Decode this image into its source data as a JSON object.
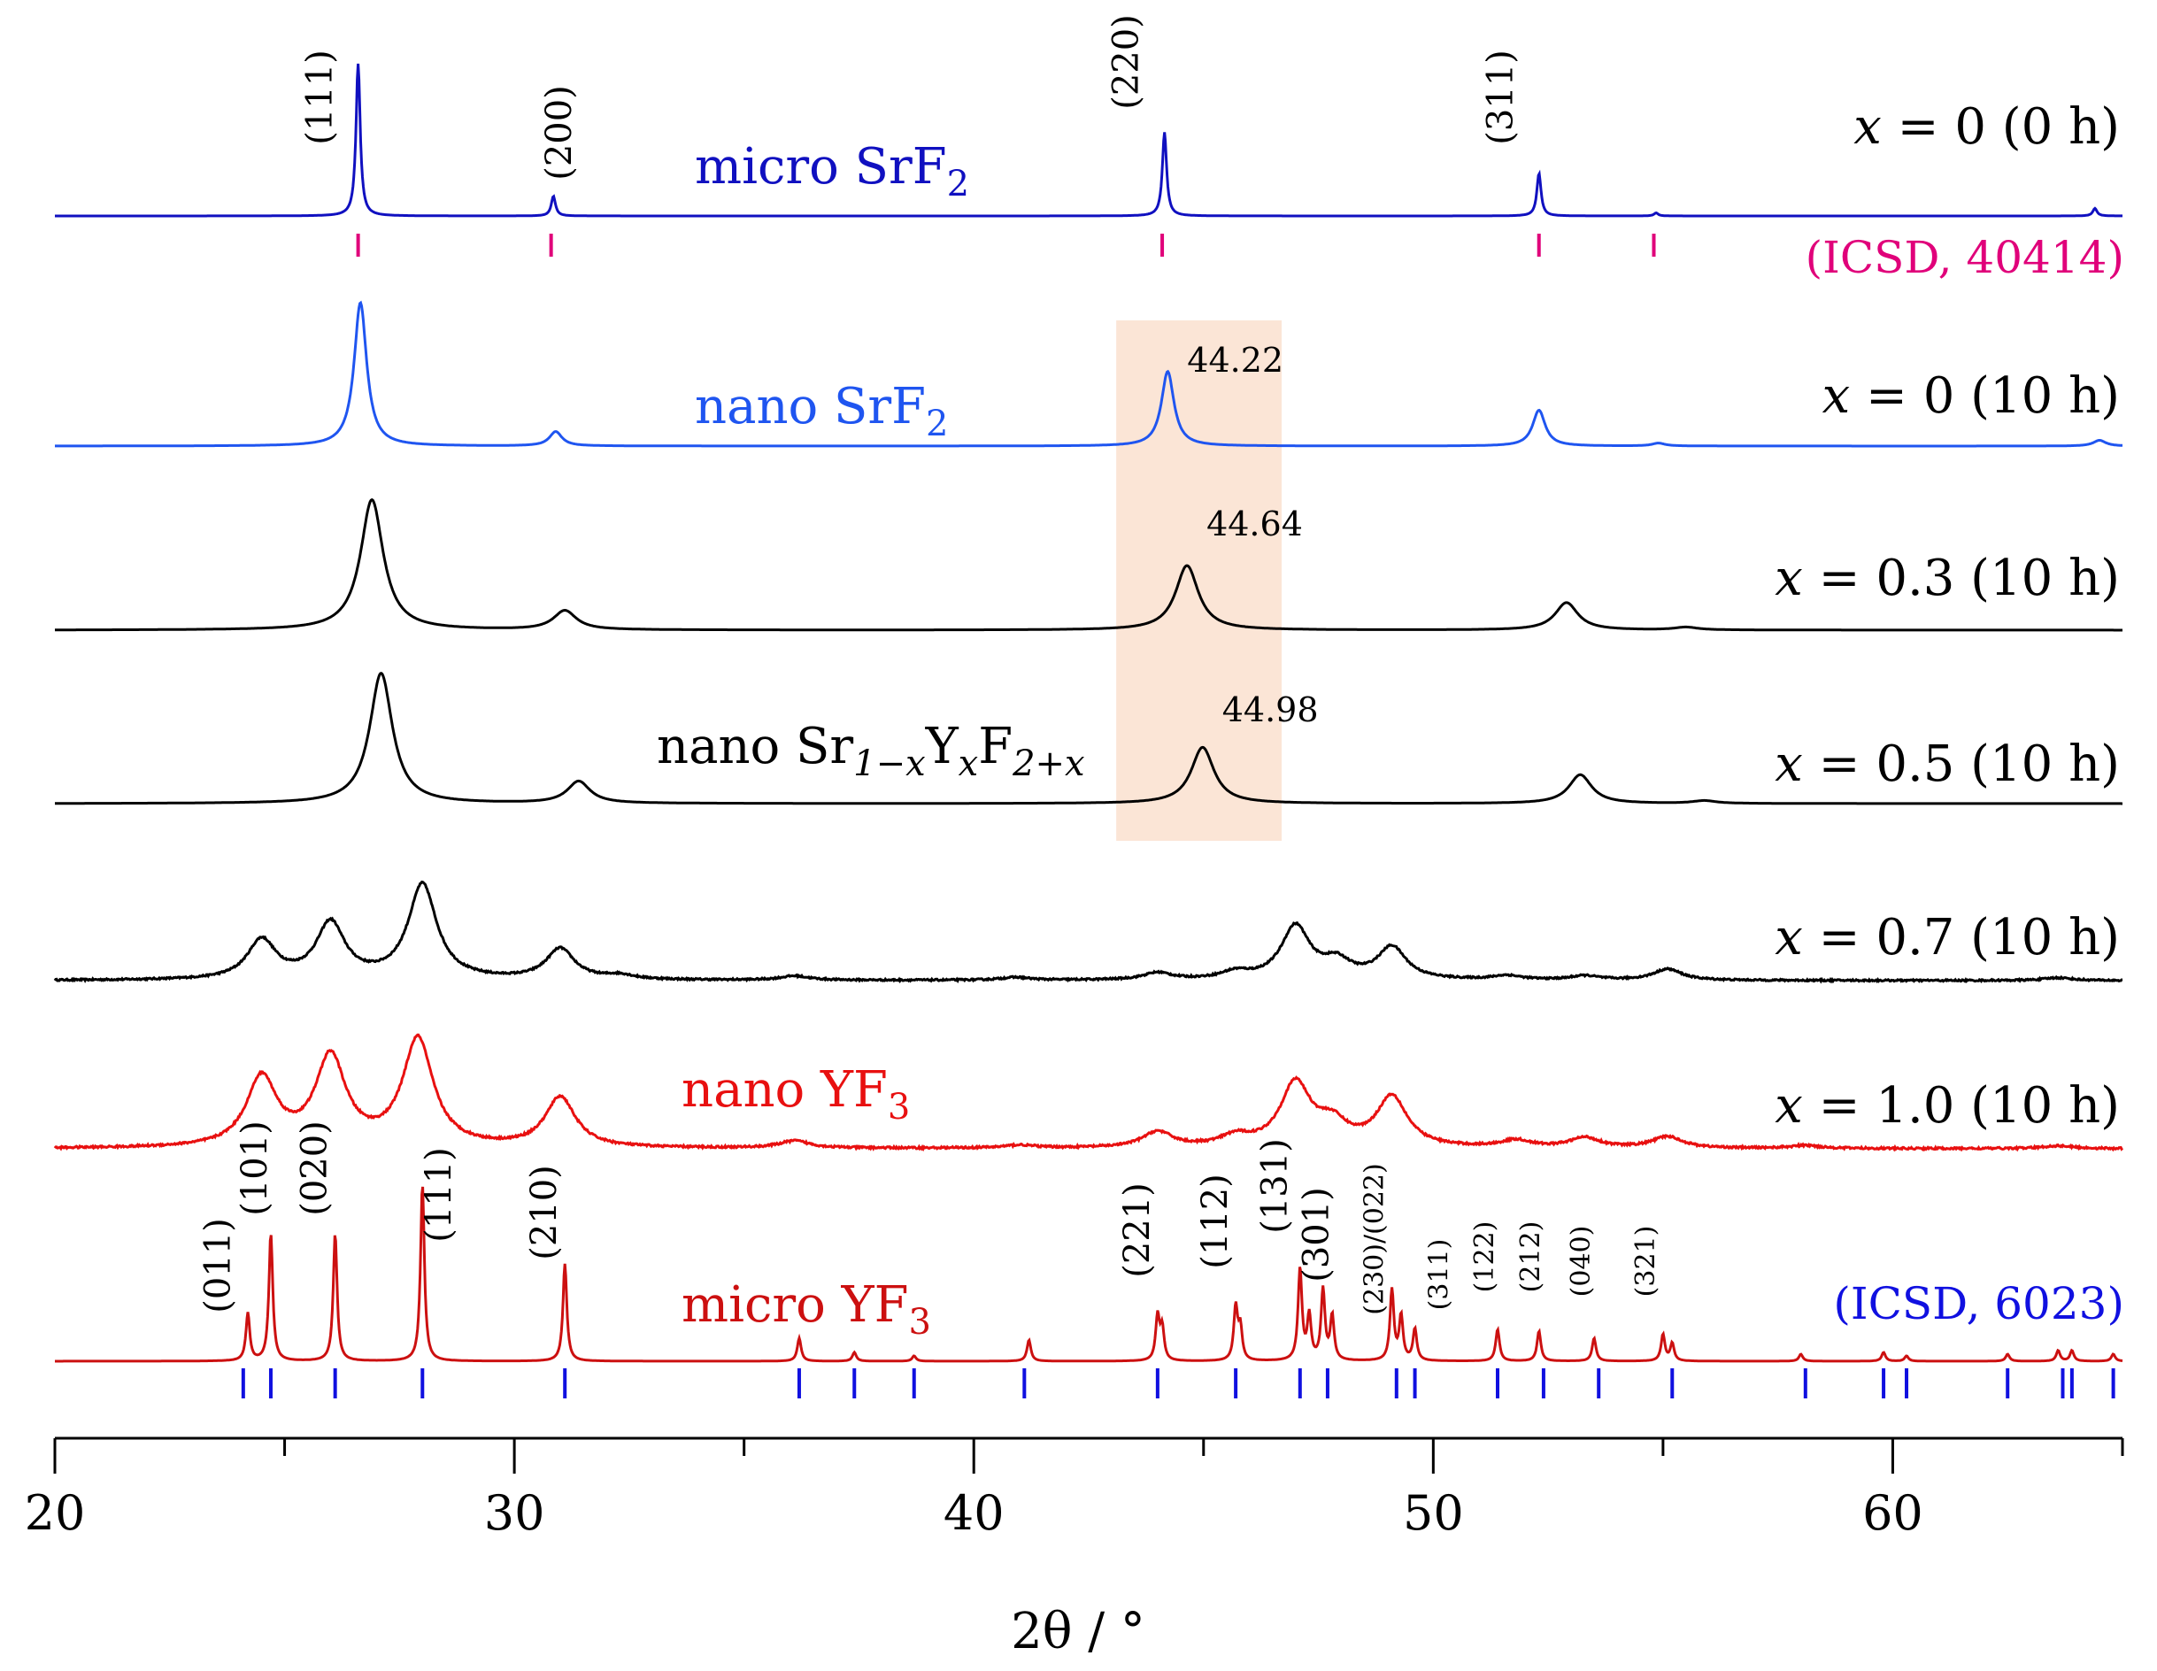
{
  "chart_data": {
    "type": "line",
    "title": "",
    "xlabel": "2θ / °",
    "ylabel": "",
    "xlim": [
      20,
      65
    ],
    "x_ticks": [
      20,
      30,
      40,
      50,
      60
    ],
    "x_tick_labels": [
      "20",
      "30",
      "40",
      "50",
      "60"
    ],
    "grid": false,
    "highlight_region": {
      "x_range": [
        43.1,
        46.7
      ],
      "color": "#fbe5d6"
    },
    "series": [
      {
        "name": "micro SrF2",
        "label_main": "micro SrF",
        "label_sub": "2",
        "condition": "x = 0 (0 h)",
        "color": "#1010c0",
        "fwhm": 0.11,
        "noise": 0.0,
        "peaks": [
          [
            26.6,
            1.0
          ],
          [
            30.85,
            0.13
          ],
          [
            44.15,
            0.55
          ],
          [
            52.3,
            0.28
          ],
          [
            54.85,
            0.02
          ],
          [
            64.4,
            0.05
          ]
        ],
        "hkl": [
          {
            "label": "(111)",
            "x": 26.6
          },
          {
            "label": "(200)",
            "x": 30.85
          },
          {
            "label": "(220)",
            "x": 44.15
          },
          {
            "label": "(311)",
            "x": 52.3
          }
        ]
      },
      {
        "name": "nano SrF2",
        "label_main": "nano SrF",
        "label_sub": "2",
        "condition": "x = 0 (10 h)",
        "color": "#1f55f0",
        "fwhm": 0.33,
        "noise": 0.0,
        "peaks": [
          [
            26.65,
            1.0
          ],
          [
            30.9,
            0.1
          ],
          [
            44.22,
            0.52
          ],
          [
            52.3,
            0.25
          ],
          [
            54.9,
            0.02
          ],
          [
            64.5,
            0.04
          ]
        ],
        "peak_label": {
          "text": "44.22",
          "x": 44.22
        }
      },
      {
        "name": "x = 0.3",
        "condition": "x = 0.3 (10 h)",
        "color": "#000000",
        "fwhm": 0.6,
        "noise": 0.0,
        "peaks": [
          [
            26.9,
            0.95
          ],
          [
            31.1,
            0.14
          ],
          [
            44.64,
            0.47
          ],
          [
            52.9,
            0.2
          ],
          [
            55.5,
            0.02
          ]
        ],
        "peak_label": {
          "text": "44.64",
          "x": 44.64
        }
      },
      {
        "name": "x = 0.5",
        "condition": "x = 0.5 (10 h)",
        "color": "#000000",
        "fwhm": 0.6,
        "noise": 0.0,
        "peaks": [
          [
            27.1,
            0.95
          ],
          [
            31.4,
            0.16
          ],
          [
            44.98,
            0.41
          ],
          [
            53.2,
            0.21
          ],
          [
            55.9,
            0.02
          ]
        ],
        "peak_label": {
          "text": "44.98",
          "x": 44.98
        }
      },
      {
        "name": "x = 0.7",
        "condition": "x = 0.7 (10 h)",
        "color": "#000000",
        "fwhm": 0.75,
        "noise": 0.006,
        "peaks": [
          [
            24.5,
            0.28
          ],
          [
            26.0,
            0.4
          ],
          [
            28.0,
            0.68
          ],
          [
            31.0,
            0.22
          ],
          [
            32.3,
            0.03
          ],
          [
            36.1,
            0.03
          ],
          [
            40.9,
            0.02
          ],
          [
            44.0,
            0.05
          ],
          [
            45.7,
            0.05
          ],
          [
            47.0,
            0.38
          ],
          [
            47.9,
            0.12
          ],
          [
            49.1,
            0.23
          ],
          [
            51.6,
            0.03
          ],
          [
            53.3,
            0.03
          ],
          [
            55.1,
            0.08
          ],
          [
            63.6,
            0.02
          ]
        ]
      },
      {
        "name": "nano YF3",
        "label_main": "nano YF",
        "label_sub": "3",
        "condition": "x = 1.0 (10 h)",
        "color": "#e81010",
        "fwhm": 0.8,
        "noise": 0.007,
        "peaks": [
          [
            24.5,
            0.48
          ],
          [
            26.0,
            0.62
          ],
          [
            27.9,
            0.75
          ],
          [
            31.0,
            0.35
          ],
          [
            36.1,
            0.05
          ],
          [
            41.0,
            0.02
          ],
          [
            44.0,
            0.11
          ],
          [
            45.7,
            0.07
          ],
          [
            47.0,
            0.44
          ],
          [
            47.8,
            0.15
          ],
          [
            49.1,
            0.35
          ],
          [
            51.8,
            0.05
          ],
          [
            53.3,
            0.07
          ],
          [
            55.1,
            0.08
          ],
          [
            58.1,
            0.02
          ],
          [
            63.6,
            0.02
          ]
        ]
      },
      {
        "name": "micro YF3",
        "label_main": "micro YF",
        "label_sub": "3",
        "color": "#cc1010",
        "fwhm": 0.1,
        "noise": 0.0,
        "peaks": [
          [
            24.2,
            0.27
          ],
          [
            24.7,
            0.72
          ],
          [
            26.1,
            0.72
          ],
          [
            28.0,
            1.0
          ],
          [
            31.1,
            0.55
          ],
          [
            36.2,
            0.13
          ],
          [
            37.4,
            0.05
          ],
          [
            38.7,
            0.03
          ],
          [
            41.2,
            0.12
          ],
          [
            44.0,
            0.25
          ],
          [
            44.1,
            0.18
          ],
          [
            45.7,
            0.3
          ],
          [
            45.8,
            0.18
          ],
          [
            47.1,
            0.52
          ],
          [
            47.3,
            0.25
          ],
          [
            47.6,
            0.4
          ],
          [
            47.8,
            0.25
          ],
          [
            49.1,
            0.4
          ],
          [
            49.3,
            0.25
          ],
          [
            49.6,
            0.18
          ],
          [
            51.4,
            0.18
          ],
          [
            52.3,
            0.17
          ],
          [
            53.5,
            0.13
          ],
          [
            55.0,
            0.15
          ],
          [
            55.2,
            0.1
          ],
          [
            58.0,
            0.04
          ],
          [
            59.8,
            0.05
          ],
          [
            60.3,
            0.03
          ],
          [
            62.5,
            0.04
          ],
          [
            63.6,
            0.06
          ],
          [
            63.9,
            0.06
          ],
          [
            64.8,
            0.04
          ]
        ],
        "hkl": [
          {
            "label": "(011)",
            "x": 24.0
          },
          {
            "label": "(101)",
            "x": 24.8
          },
          {
            "label": "(020)",
            "x": 26.1
          },
          {
            "label": "(111)",
            "x": 28.8
          },
          {
            "label": "(210)",
            "x": 31.1
          },
          {
            "label": "(221)",
            "x": 44.0
          },
          {
            "label": "(112)",
            "x": 45.7
          },
          {
            "label": "(131)",
            "x": 47.0
          },
          {
            "label": "(301)",
            "x": 47.9
          },
          {
            "label": "(230)/(022)",
            "x": 49.1
          },
          {
            "label": "(311)",
            "x": 50.5
          },
          {
            "label": "(122)",
            "x": 51.5
          },
          {
            "label": "(212)",
            "x": 52.5
          },
          {
            "label": "(040)",
            "x": 53.6
          },
          {
            "label": "(321)",
            "x": 55.0
          }
        ]
      }
    ],
    "composite_label": {
      "main": "nano Sr",
      "sub1": "1−x",
      "y": "Y",
      "sub2": "x",
      "f": "F",
      "sub3": "2+x"
    },
    "references": [
      {
        "name": "(ICSD, 40414)",
        "color": "#e0007a",
        "positions": [
          26.6,
          30.8,
          44.1,
          52.3,
          54.8
        ]
      },
      {
        "name": "(ICSD, 6023)",
        "color": "#1010e0",
        "positions": [
          24.1,
          24.7,
          26.1,
          28.0,
          31.1,
          36.2,
          37.4,
          38.7,
          41.1,
          44.0,
          45.7,
          47.1,
          47.7,
          49.2,
          49.6,
          51.4,
          52.4,
          53.6,
          55.2,
          58.1,
          59.8,
          60.3,
          62.5,
          63.7,
          63.9,
          64.8
        ]
      }
    ]
  }
}
